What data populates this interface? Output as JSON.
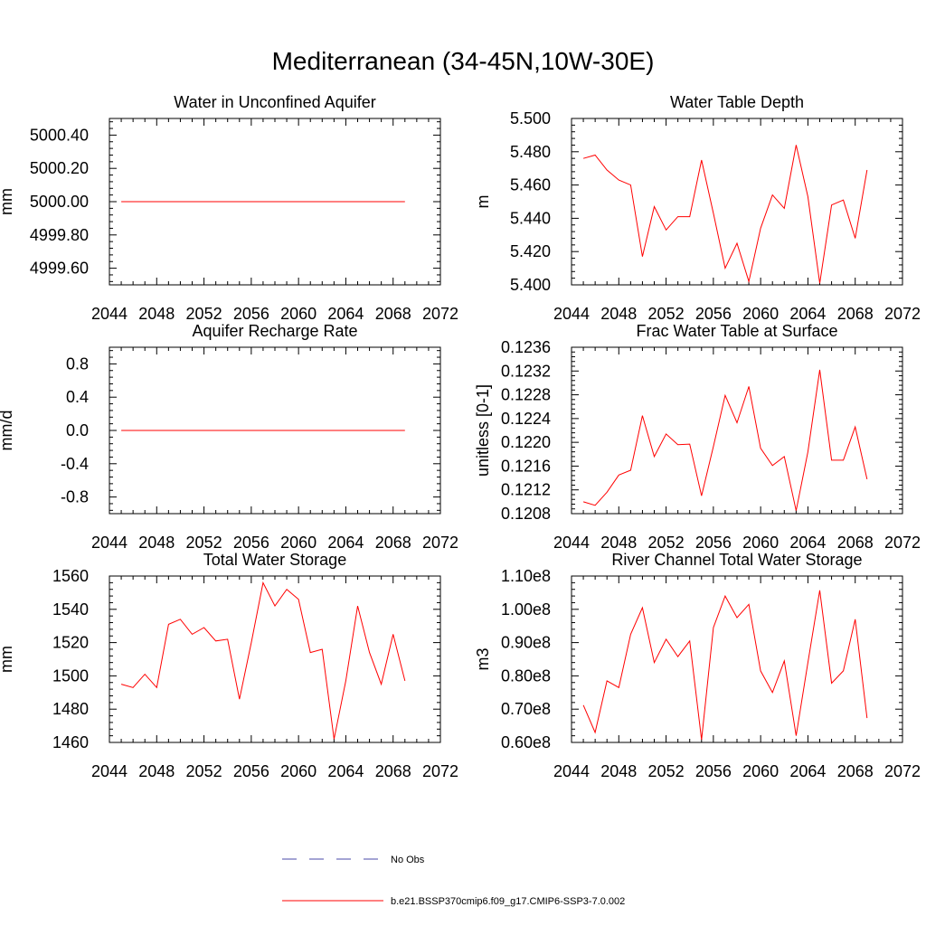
{
  "figure": {
    "title": "Mediterranean (34-45N,10W-30E)"
  },
  "colors": {
    "series": "#ff0000",
    "obs": "#4a4aa8",
    "axis": "#000000"
  },
  "legend": {
    "items": [
      {
        "label": "No Obs",
        "style": "dashed",
        "color": "#4a4aa8"
      },
      {
        "label": "b.e21.BSSP370cmip6.f09_g17.CMIP6-SSP3-7.0.002",
        "style": "solid",
        "color": "#ff0000"
      }
    ]
  },
  "chart_data": [
    {
      "type": "line",
      "title": "Water in Unconfined Aquifer",
      "xlabel": "",
      "ylabel": "mm",
      "xlim": [
        2044,
        2072
      ],
      "xticks": [
        2044,
        2048,
        2052,
        2056,
        2060,
        2064,
        2068,
        2072
      ],
      "ylim": [
        4999.5,
        5000.5
      ],
      "yticks": [
        4999.6,
        4999.8,
        5000.0,
        5000.2,
        5000.4
      ],
      "yticklabels": [
        "4999.60",
        "4999.80",
        "5000.00",
        "5000.20",
        "5000.40"
      ],
      "x": [
        2045,
        2046,
        2047,
        2048,
        2049,
        2050,
        2051,
        2052,
        2053,
        2054,
        2055,
        2056,
        2057,
        2058,
        2059,
        2060,
        2061,
        2062,
        2063,
        2064,
        2065,
        2066,
        2067,
        2068,
        2069
      ],
      "series": [
        {
          "name": "b.e21.BSSP370cmip6.f09_g17.CMIP6-SSP3-7.0.002",
          "values": [
            5000,
            5000,
            5000,
            5000,
            5000,
            5000,
            5000,
            5000,
            5000,
            5000,
            5000,
            5000,
            5000,
            5000,
            5000,
            5000,
            5000,
            5000,
            5000,
            5000,
            5000,
            5000,
            5000,
            5000,
            5000
          ]
        }
      ]
    },
    {
      "type": "line",
      "title": "Water Table Depth",
      "xlabel": "",
      "ylabel": "m",
      "xlim": [
        2044,
        2072
      ],
      "xticks": [
        2044,
        2048,
        2052,
        2056,
        2060,
        2064,
        2068,
        2072
      ],
      "ylim": [
        5.4,
        5.5
      ],
      "yticks": [
        5.4,
        5.42,
        5.44,
        5.46,
        5.48,
        5.5
      ],
      "yticklabels": [
        "5.400",
        "5.420",
        "5.440",
        "5.460",
        "5.480",
        "5.500"
      ],
      "x": [
        2045,
        2046,
        2047,
        2048,
        2049,
        2050,
        2051,
        2052,
        2053,
        2054,
        2055,
        2056,
        2057,
        2058,
        2059,
        2060,
        2061,
        2062,
        2063,
        2064,
        2065,
        2066,
        2067,
        2068,
        2069
      ],
      "series": [
        {
          "name": "b.e21.BSSP370cmip6.f09_g17.CMIP6-SSP3-7.0.002",
          "values": [
            5.476,
            5.478,
            5.469,
            5.463,
            5.46,
            5.417,
            5.447,
            5.433,
            5.441,
            5.441,
            5.475,
            5.443,
            5.41,
            5.425,
            5.402,
            5.434,
            5.454,
            5.446,
            5.484,
            5.453,
            5.401,
            5.448,
            5.451,
            5.428,
            5.469
          ]
        }
      ]
    },
    {
      "type": "line",
      "title": "Aquifer Recharge Rate",
      "xlabel": "",
      "ylabel": "mm/d",
      "xlim": [
        2044,
        2072
      ],
      "xticks": [
        2044,
        2048,
        2052,
        2056,
        2060,
        2064,
        2068,
        2072
      ],
      "ylim": [
        -1.0,
        1.0
      ],
      "yticks": [
        -0.8,
        -0.4,
        0.0,
        0.4,
        0.8
      ],
      "yticklabels": [
        "-0.8",
        "-0.4",
        "0.0",
        "0.4",
        "0.8"
      ],
      "x": [
        2045,
        2046,
        2047,
        2048,
        2049,
        2050,
        2051,
        2052,
        2053,
        2054,
        2055,
        2056,
        2057,
        2058,
        2059,
        2060,
        2061,
        2062,
        2063,
        2064,
        2065,
        2066,
        2067,
        2068,
        2069
      ],
      "series": [
        {
          "name": "b.e21.BSSP370cmip6.f09_g17.CMIP6-SSP3-7.0.002",
          "values": [
            0,
            0,
            0,
            0,
            0,
            0,
            0,
            0,
            0,
            0,
            0,
            0,
            0,
            0,
            0,
            0,
            0,
            0,
            0,
            0,
            0,
            0,
            0,
            0,
            0
          ]
        }
      ]
    },
    {
      "type": "line",
      "title": "Frac Water Table at Surface",
      "xlabel": "",
      "ylabel": "unitless [0-1]",
      "xlim": [
        2044,
        2072
      ],
      "xticks": [
        2044,
        2048,
        2052,
        2056,
        2060,
        2064,
        2068,
        2072
      ],
      "ylim": [
        0.1208,
        0.1236
      ],
      "yticks": [
        0.1208,
        0.1212,
        0.1216,
        0.122,
        0.1224,
        0.1228,
        0.1232,
        0.1236
      ],
      "yticklabels": [
        "0.1208",
        "0.1212",
        "0.1216",
        "0.1220",
        "0.1224",
        "0.1228",
        "0.1232",
        "0.1236"
      ],
      "x": [
        2045,
        2046,
        2047,
        2048,
        2049,
        2050,
        2051,
        2052,
        2053,
        2054,
        2055,
        2056,
        2057,
        2058,
        2059,
        2060,
        2061,
        2062,
        2063,
        2064,
        2065,
        2066,
        2067,
        2068,
        2069
      ],
      "series": [
        {
          "name": "b.e21.BSSP370cmip6.f09_g17.CMIP6-SSP3-7.0.002",
          "values": [
            0.121,
            0.12094,
            0.12116,
            0.12145,
            0.12153,
            0.12245,
            0.12176,
            0.12214,
            0.12196,
            0.12197,
            0.1211,
            0.12193,
            0.12279,
            0.12233,
            0.12294,
            0.1219,
            0.12161,
            0.12176,
            0.12085,
            0.12184,
            0.12322,
            0.1217,
            0.1217,
            0.12226,
            0.12138
          ]
        }
      ]
    },
    {
      "type": "line",
      "title": "Total Water Storage",
      "xlabel": "",
      "ylabel": "mm",
      "xlim": [
        2044,
        2072
      ],
      "xticks": [
        2044,
        2048,
        2052,
        2056,
        2060,
        2064,
        2068,
        2072
      ],
      "ylim": [
        1460,
        1560
      ],
      "yticks": [
        1460,
        1480,
        1500,
        1520,
        1540,
        1560
      ],
      "yticklabels": [
        "1460",
        "1480",
        "1500",
        "1520",
        "1540",
        "1560"
      ],
      "x": [
        2045,
        2046,
        2047,
        2048,
        2049,
        2050,
        2051,
        2052,
        2053,
        2054,
        2055,
        2056,
        2057,
        2058,
        2059,
        2060,
        2061,
        2062,
        2063,
        2064,
        2065,
        2066,
        2067,
        2068,
        2069
      ],
      "series": [
        {
          "name": "b.e21.BSSP370cmip6.f09_g17.CMIP6-SSP3-7.0.002",
          "values": [
            1495,
            1493,
            1501,
            1493,
            1531,
            1534,
            1525,
            1529,
            1521,
            1522,
            1486,
            1520,
            1556,
            1542,
            1552,
            1546,
            1514,
            1516,
            1462,
            1497,
            1542,
            1514,
            1495,
            1525,
            1497
          ]
        }
      ]
    },
    {
      "type": "line",
      "title": "River Channel Total Water Storage",
      "xlabel": "",
      "ylabel": "m3",
      "xlim": [
        2044,
        2072
      ],
      "xticks": [
        2044,
        2048,
        2052,
        2056,
        2060,
        2064,
        2068,
        2072
      ],
      "ylim": [
        60000000,
        110000000
      ],
      "yticks": [
        60000000,
        70000000,
        80000000,
        90000000,
        100000000,
        110000000
      ],
      "yticklabels": [
        "0.60e8",
        "0.70e8",
        "0.80e8",
        "0.90e8",
        "1.00e8",
        "1.10e8"
      ],
      "x": [
        2045,
        2046,
        2047,
        2048,
        2049,
        2050,
        2051,
        2052,
        2053,
        2054,
        2055,
        2056,
        2057,
        2058,
        2059,
        2060,
        2061,
        2062,
        2063,
        2064,
        2065,
        2066,
        2067,
        2068,
        2069
      ],
      "series": [
        {
          "name": "b.e21.BSSP370cmip6.f09_g17.CMIP6-SSP3-7.0.002",
          "values": [
            71200000,
            63000000,
            78500000,
            76500000,
            92500000,
            100500000,
            84000000,
            91000000,
            85800000,
            90500000,
            60800000,
            94500000,
            104000000,
            97500000,
            101500000,
            81500000,
            75000000,
            84500000,
            62000000,
            84000000,
            105700000,
            77800000,
            81500000,
            97000000,
            67300000
          ]
        }
      ]
    }
  ]
}
